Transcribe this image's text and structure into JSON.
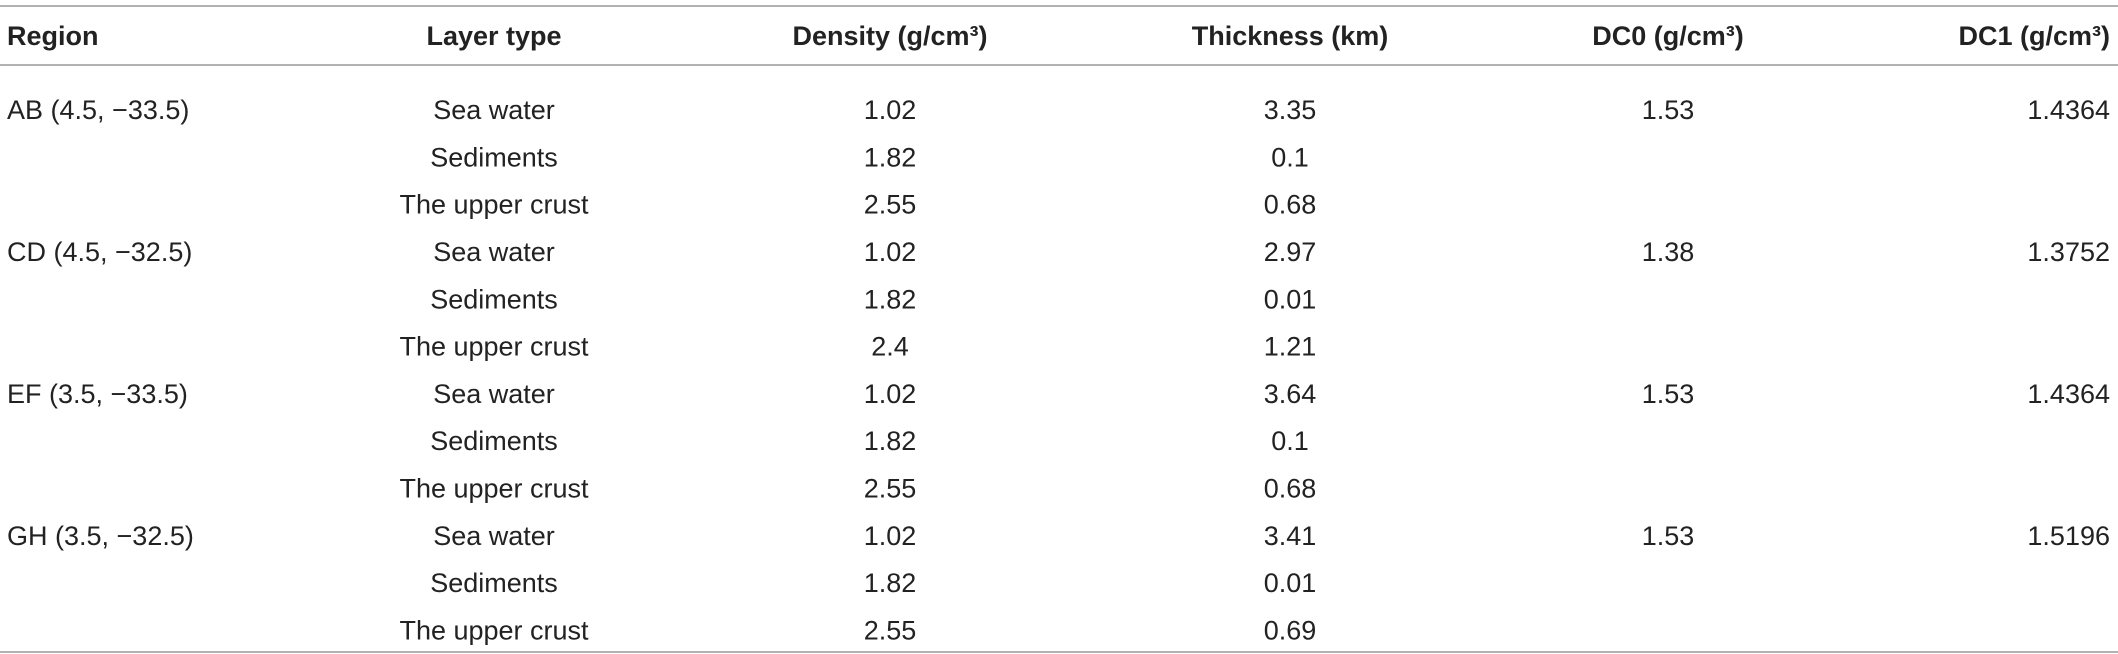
{
  "table": {
    "header": [
      "Region",
      "Layer type",
      "Density (g/cm³)",
      "Thickness (km)",
      "DC0 (g/cm³)",
      "DC1 (g/cm³)"
    ],
    "groups": [
      {
        "region": "AB (4.5, −33.5)",
        "dc0": "1.53",
        "dc1": "1.4364",
        "layers": [
          {
            "type": "Sea water",
            "density": "1.02",
            "thickness": "3.35"
          },
          {
            "type": "Sediments",
            "density": "1.82",
            "thickness": "0.1"
          },
          {
            "type": "The upper crust",
            "density": "2.55",
            "thickness": "0.68"
          }
        ]
      },
      {
        "region": "CD (4.5, −32.5)",
        "dc0": "1.38",
        "dc1": "1.3752",
        "layers": [
          {
            "type": "Sea water",
            "density": "1.02",
            "thickness": "2.97"
          },
          {
            "type": "Sediments",
            "density": "1.82",
            "thickness": "0.01"
          },
          {
            "type": "The upper crust",
            "density": "2.4",
            "thickness": "1.21"
          }
        ]
      },
      {
        "region": "EF (3.5, −33.5)",
        "dc0": "1.53",
        "dc1": "1.4364",
        "layers": [
          {
            "type": "Sea water",
            "density": "1.02",
            "thickness": "3.64"
          },
          {
            "type": "Sediments",
            "density": "1.82",
            "thickness": "0.1"
          },
          {
            "type": "The upper crust",
            "density": "2.55",
            "thickness": "0.68"
          }
        ]
      },
      {
        "region": "GH (3.5, −32.5)",
        "dc0": "1.53",
        "dc1": "1.5196",
        "layers": [
          {
            "type": "Sea water",
            "density": "1.02",
            "thickness": "3.41"
          },
          {
            "type": "Sediments",
            "density": "1.82",
            "thickness": "0.01"
          },
          {
            "type": "The upper crust",
            "density": "2.55",
            "thickness": "0.69"
          }
        ]
      }
    ]
  }
}
